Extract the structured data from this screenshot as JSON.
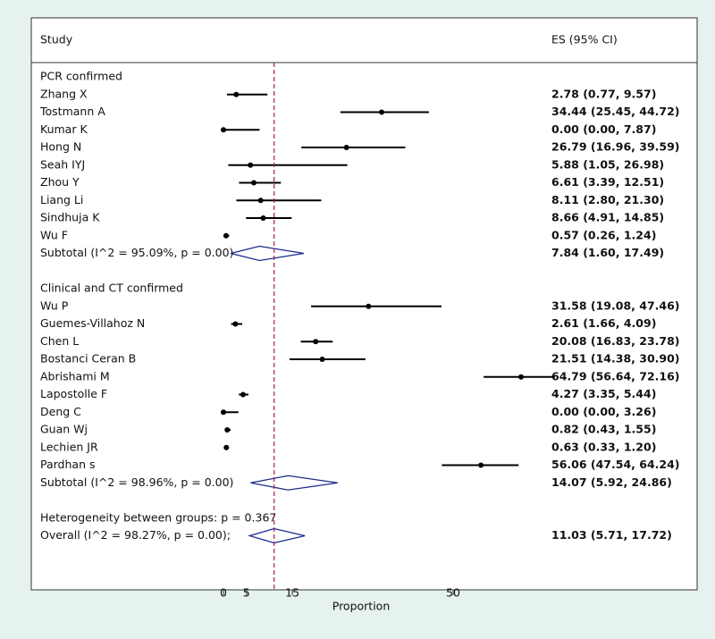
{
  "chart_data": {
    "type": "forest",
    "study_header": "Study",
    "es_header": "ES (95% CI)",
    "x_label": "Proportion",
    "xlim": [
      0,
      50
    ],
    "xticks": [
      0,
      5,
      15,
      50
    ],
    "groups": [
      {
        "name": "PCR confirmed",
        "studies": [
          {
            "name": "Zhang X",
            "es": 2.78,
            "lo": 0.77,
            "hi": 9.57,
            "label": "2.78 (0.77, 9.57)"
          },
          {
            "name": "Tostmann A",
            "es": 34.44,
            "lo": 25.45,
            "hi": 44.72,
            "label": "34.44 (25.45, 44.72)"
          },
          {
            "name": "Kumar K",
            "es": 0.0,
            "lo": 0.0,
            "hi": 7.87,
            "label": "0.00 (0.00, 7.87)"
          },
          {
            "name": "Hong N",
            "es": 26.79,
            "lo": 16.96,
            "hi": 39.59,
            "label": "26.79 (16.96, 39.59)"
          },
          {
            "name": "Seah IYJ",
            "es": 5.88,
            "lo": 1.05,
            "hi": 26.98,
            "label": "5.88 (1.05, 26.98)"
          },
          {
            "name": "Zhou Y",
            "es": 6.61,
            "lo": 3.39,
            "hi": 12.51,
            "label": "6.61 (3.39, 12.51)"
          },
          {
            "name": "Liang Li",
            "es": 8.11,
            "lo": 2.8,
            "hi": 21.3,
            "label": "8.11 (2.80, 21.30)"
          },
          {
            "name": "Sindhuja K",
            "es": 8.66,
            "lo": 4.91,
            "hi": 14.85,
            "label": "8.66 (4.91, 14.85)"
          },
          {
            "name": "Wu  F",
            "es": 0.57,
            "lo": 0.26,
            "hi": 1.24,
            "label": "0.57 (0.26, 1.24)"
          }
        ],
        "subtotal": {
          "name": "Subtotal  (I^2 = 95.09%, p = 0.00)",
          "es": 7.84,
          "lo": 1.6,
          "hi": 17.49,
          "label": "7.84 (1.60, 17.49)"
        }
      },
      {
        "name": "Clinical and CT confirmed",
        "studies": [
          {
            "name": "Wu P",
            "es": 31.58,
            "lo": 19.08,
            "hi": 47.46,
            "label": "31.58 (19.08, 47.46)"
          },
          {
            "name": "Guemes-Villahoz N",
            "es": 2.61,
            "lo": 1.66,
            "hi": 4.09,
            "label": "2.61 (1.66, 4.09)"
          },
          {
            "name": "Chen L",
            "es": 20.08,
            "lo": 16.83,
            "hi": 23.78,
            "label": "20.08 (16.83, 23.78)"
          },
          {
            "name": "Bostanci Ceran B",
            "es": 21.51,
            "lo": 14.38,
            "hi": 30.9,
            "label": "21.51 (14.38, 30.90)"
          },
          {
            "name": "Abrishami M",
            "es": 64.79,
            "lo": 56.64,
            "hi": 72.16,
            "label": "64.79 (56.64, 72.16)"
          },
          {
            "name": "Lapostolle F",
            "es": 4.27,
            "lo": 3.35,
            "hi": 5.44,
            "label": "4.27 (3.35, 5.44)"
          },
          {
            "name": "Deng C",
            "es": 0.0,
            "lo": 0.0,
            "hi": 3.26,
            "label": "0.00 (0.00, 3.26)"
          },
          {
            "name": "Guan Wj",
            "es": 0.82,
            "lo": 0.43,
            "hi": 1.55,
            "label": "0.82 (0.43, 1.55)"
          },
          {
            "name": "Lechien JR",
            "es": 0.63,
            "lo": 0.33,
            "hi": 1.2,
            "label": "0.63 (0.33, 1.20)"
          },
          {
            "name": "Pardhan s",
            "es": 56.06,
            "lo": 47.54,
            "hi": 64.24,
            "label": "56.06 (47.54, 64.24)"
          }
        ],
        "subtotal": {
          "name": "Subtotal  (I^2 = 98.96%, p = 0.00)",
          "es": 14.07,
          "lo": 5.92,
          "hi": 24.86,
          "label": "14.07 (5.92, 24.86)"
        }
      }
    ],
    "heterogeneity": "Heterogeneity between groups: p = 0.367",
    "overall": {
      "name": "Overall  (I^2 = 98.27%, p = 0.00);",
      "es": 11.03,
      "lo": 5.71,
      "hi": 17.72,
      "label": "11.03 (5.71, 17.72)"
    }
  }
}
